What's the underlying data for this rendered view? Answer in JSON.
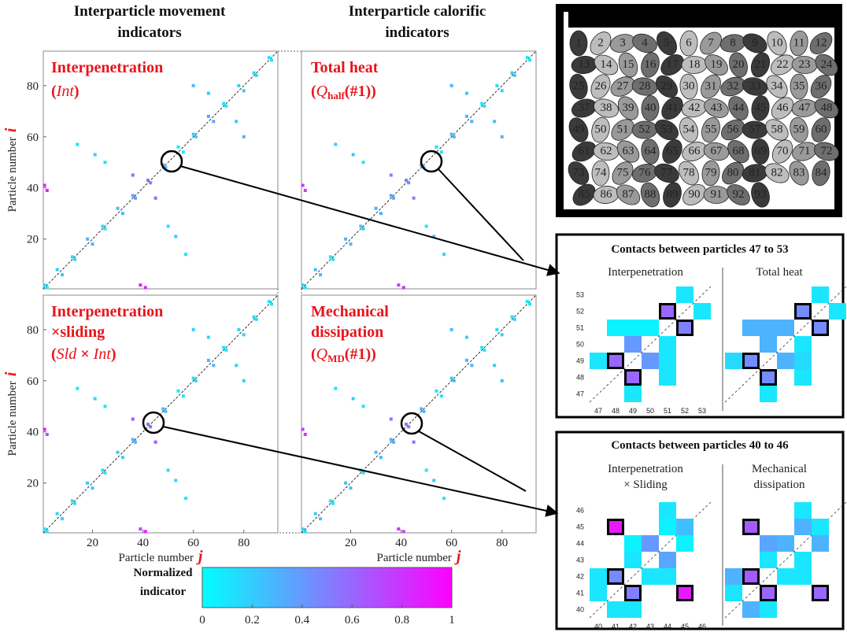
{
  "column_headers": [
    [
      "Interparticle movement",
      "indicators"
    ],
    [
      "Interparticle calorific",
      "indicators"
    ]
  ],
  "zoom_titles": [
    "Contacts between particles 47 to 53",
    "Contacts between particles 40 to 46"
  ],
  "particles": [
    1,
    2,
    3,
    4,
    5,
    6,
    7,
    8,
    9,
    10,
    11,
    12,
    13,
    14,
    15,
    16,
    17,
    18,
    19,
    20,
    21,
    22,
    23,
    24,
    25,
    26,
    27,
    28,
    29,
    30,
    31,
    32,
    33,
    34,
    35,
    36,
    37,
    38,
    39,
    40,
    41,
    42,
    43,
    44,
    45,
    46,
    47,
    48,
    49,
    50,
    51,
    52,
    53,
    54,
    55,
    56,
    57,
    58,
    59,
    60,
    61,
    62,
    63,
    64,
    65,
    66,
    67,
    68,
    69,
    70,
    71,
    72,
    73,
    74,
    75,
    76,
    77,
    78,
    79,
    80,
    81,
    82,
    83,
    84,
    85,
    86,
    87,
    88,
    89,
    90,
    91,
    92,
    93
  ],
  "chart_data": [
    {
      "type": "contact-map",
      "title": [
        [
          "Interpenetration"
        ],
        [
          "(",
          "Int",
          ")"
        ]
      ],
      "ylabel": [
        "Particle number",
        "i"
      ],
      "xlim": [
        0.5,
        93.5
      ],
      "ylim": [
        0.5,
        93.5
      ],
      "yticks": [
        20,
        40,
        60,
        80
      ],
      "x": [
        1,
        6,
        12,
        18,
        24,
        30,
        36,
        42,
        48,
        54,
        60,
        66,
        72,
        78,
        84,
        90,
        2,
        1,
        14,
        21,
        36,
        25,
        60,
        66,
        2,
        8,
        13,
        20,
        25,
        32,
        37,
        43,
        49,
        56,
        61,
        68,
        73,
        80,
        85,
        91,
        39,
        41,
        57,
        53,
        45,
        50,
        80,
        77
      ],
      "y": [
        2,
        8,
        13,
        20,
        25,
        32,
        37,
        43,
        49,
        56,
        61,
        68,
        73,
        80,
        85,
        91,
        39,
        41,
        57,
        53,
        45,
        50,
        80,
        77,
        1,
        6,
        12,
        18,
        24,
        30,
        36,
        42,
        48,
        54,
        60,
        66,
        72,
        78,
        84,
        90,
        2,
        1,
        14,
        21,
        36,
        25,
        60,
        66
      ],
      "values": [
        0.1,
        0.2,
        0.15,
        0.3,
        0.1,
        0.25,
        0.4,
        0.5,
        0.3,
        0.1,
        0.2,
        0.35,
        0.1,
        0.2,
        0.15,
        0.1,
        0.9,
        0.85,
        0.1,
        0.2,
        0.6,
        0.1,
        0.3,
        0.2,
        0.1,
        0.2,
        0.15,
        0.3,
        0.1,
        0.25,
        0.4,
        0.5,
        0.3,
        0.1,
        0.2,
        0.35,
        0.1,
        0.2,
        0.15,
        0.1,
        0.9,
        0.85,
        0.1,
        0.2,
        0.6,
        0.1,
        0.3,
        0.2
      ]
    },
    {
      "type": "contact-map",
      "title": [
        [
          "Total heat"
        ],
        [
          "(",
          "Q",
          "half",
          "(#1))"
        ]
      ],
      "xlim": [
        0.5,
        93.5
      ],
      "ylim": [
        0.5,
        93.5
      ],
      "x": [
        1,
        6,
        12,
        18,
        24,
        30,
        36,
        42,
        48,
        54,
        60,
        66,
        72,
        78,
        84,
        90,
        2,
        1,
        14,
        21,
        36,
        25,
        60,
        66,
        2,
        8,
        13,
        20,
        25,
        32,
        37,
        43,
        49,
        56,
        61,
        68,
        73,
        80,
        85,
        91,
        39,
        41,
        57,
        53,
        45,
        50,
        80,
        77
      ],
      "y": [
        2,
        8,
        13,
        20,
        25,
        32,
        37,
        43,
        49,
        56,
        61,
        68,
        73,
        80,
        85,
        91,
        39,
        41,
        57,
        53,
        45,
        50,
        80,
        77,
        1,
        6,
        12,
        18,
        24,
        30,
        36,
        42,
        48,
        54,
        60,
        66,
        72,
        78,
        84,
        90,
        2,
        1,
        14,
        21,
        36,
        25,
        60,
        66
      ],
      "values": [
        0.15,
        0.25,
        0.1,
        0.3,
        0.2,
        0.3,
        0.35,
        0.45,
        0.3,
        0.1,
        0.25,
        0.3,
        0.1,
        0.15,
        0.2,
        0.1,
        0.75,
        0.8,
        0.15,
        0.25,
        0.5,
        0.1,
        0.3,
        0.25,
        0.15,
        0.25,
        0.1,
        0.3,
        0.2,
        0.3,
        0.35,
        0.45,
        0.3,
        0.1,
        0.25,
        0.3,
        0.1,
        0.15,
        0.2,
        0.1,
        0.75,
        0.8,
        0.15,
        0.25,
        0.5,
        0.1,
        0.3,
        0.25
      ]
    },
    {
      "type": "contact-map",
      "title": [
        [
          "Interpenetration"
        ],
        [
          "×sliding"
        ],
        [
          "(",
          "Sld",
          " × ",
          "Int",
          ")"
        ]
      ],
      "xlabel": [
        "Particle number",
        "j"
      ],
      "ylabel": [
        "Particle number",
        "i"
      ],
      "xlim": [
        0.5,
        93.5
      ],
      "ylim": [
        0.5,
        93.5
      ],
      "xticks": [
        20,
        40,
        60,
        80
      ],
      "yticks": [
        20,
        40,
        60,
        80
      ],
      "x": [
        1,
        6,
        12,
        18,
        24,
        30,
        36,
        42,
        48,
        54,
        60,
        66,
        72,
        78,
        84,
        90,
        2,
        1,
        14,
        21,
        36,
        25,
        60,
        66,
        2,
        8,
        13,
        20,
        25,
        32,
        37,
        43,
        49,
        56,
        61,
        68,
        73,
        80,
        85,
        91,
        39,
        41,
        57,
        53,
        45,
        50,
        80,
        77
      ],
      "y": [
        2,
        8,
        13,
        20,
        25,
        32,
        37,
        43,
        49,
        56,
        61,
        68,
        73,
        80,
        85,
        91,
        39,
        41,
        57,
        53,
        45,
        50,
        80,
        77,
        1,
        6,
        12,
        18,
        24,
        30,
        36,
        42,
        48,
        54,
        60,
        66,
        72,
        78,
        84,
        90,
        2,
        1,
        14,
        21,
        36,
        25,
        60,
        66
      ],
      "values": [
        0.1,
        0.15,
        0.1,
        0.2,
        0.1,
        0.2,
        0.3,
        0.55,
        0.25,
        0.1,
        0.15,
        0.3,
        0.1,
        0.15,
        0.1,
        0.1,
        0.7,
        0.9,
        0.1,
        0.15,
        0.65,
        0.1,
        0.2,
        0.15,
        0.1,
        0.15,
        0.1,
        0.2,
        0.1,
        0.2,
        0.3,
        0.55,
        0.25,
        0.1,
        0.15,
        0.3,
        0.1,
        0.15,
        0.1,
        0.1,
        0.7,
        0.9,
        0.1,
        0.15,
        0.65,
        0.1,
        0.2,
        0.15
      ]
    },
    {
      "type": "contact-map",
      "title": [
        [
          "Mechanical"
        ],
        [
          "dissipation"
        ],
        [
          "(",
          "Q",
          "MD",
          "(#1))"
        ]
      ],
      "xlabel": [
        "Particle number",
        "j"
      ],
      "xlim": [
        0.5,
        93.5
      ],
      "ylim": [
        0.5,
        93.5
      ],
      "xticks": [
        20,
        40,
        60,
        80
      ],
      "x": [
        1,
        6,
        12,
        18,
        24,
        30,
        36,
        42,
        48,
        54,
        60,
        66,
        72,
        78,
        84,
        90,
        2,
        1,
        14,
        21,
        36,
        25,
        60,
        66,
        2,
        8,
        13,
        20,
        25,
        32,
        37,
        43,
        49,
        56,
        61,
        68,
        73,
        80,
        85,
        91,
        39,
        41,
        57,
        53,
        45,
        50,
        80,
        77
      ],
      "y": [
        2,
        8,
        13,
        20,
        25,
        32,
        37,
        43,
        49,
        56,
        61,
        68,
        73,
        80,
        85,
        91,
        39,
        41,
        57,
        53,
        45,
        50,
        80,
        77,
        1,
        6,
        12,
        18,
        24,
        30,
        36,
        42,
        48,
        54,
        60,
        66,
        72,
        78,
        84,
        90,
        2,
        1,
        14,
        21,
        36,
        25,
        60,
        66
      ],
      "values": [
        0.15,
        0.2,
        0.1,
        0.25,
        0.15,
        0.25,
        0.3,
        0.5,
        0.3,
        0.1,
        0.2,
        0.3,
        0.1,
        0.15,
        0.15,
        0.1,
        0.8,
        0.75,
        0.1,
        0.2,
        0.55,
        0.1,
        0.25,
        0.2,
        0.15,
        0.2,
        0.1,
        0.25,
        0.15,
        0.25,
        0.3,
        0.5,
        0.3,
        0.1,
        0.2,
        0.3,
        0.1,
        0.15,
        0.15,
        0.1,
        0.8,
        0.75,
        0.1,
        0.2,
        0.55,
        0.1,
        0.25,
        0.2
      ]
    },
    {
      "type": "contact-grid",
      "title": [
        "Interpenetration"
      ],
      "xlim": [
        46.5,
        53.5
      ],
      "ylim": [
        46.5,
        53.5
      ],
      "xticks": [
        47,
        48,
        49,
        50,
        51,
        52,
        53
      ],
      "yticks": [
        47,
        48,
        49,
        50,
        51,
        52,
        53
      ],
      "x": [
        52,
        51,
        53,
        48,
        49,
        50,
        52,
        49,
        51,
        47,
        48,
        50,
        51,
        49,
        51,
        49
      ],
      "y": [
        53,
        52,
        52,
        51,
        51,
        51,
        51,
        50,
        50,
        49,
        49,
        49,
        49,
        48,
        48,
        47
      ],
      "values": [
        0.1,
        0.6,
        0.1,
        0.05,
        0.05,
        0.05,
        0.5,
        0.4,
        0.1,
        0.1,
        0.6,
        0.4,
        0.1,
        0.6,
        0.1,
        0.1
      ],
      "highlighted": [
        false,
        true,
        false,
        false,
        false,
        false,
        true,
        false,
        false,
        false,
        true,
        false,
        false,
        true,
        false,
        false
      ]
    },
    {
      "type": "contact-grid",
      "title": [
        "Total heat"
      ],
      "xlim": [
        46.5,
        53.5
      ],
      "ylim": [
        46.5,
        53.5
      ],
      "x": [
        52,
        51,
        53,
        48,
        49,
        50,
        52,
        49,
        51,
        47,
        48,
        50,
        51,
        49,
        51,
        49
      ],
      "y": [
        53,
        52,
        52,
        51,
        51,
        51,
        51,
        50,
        50,
        49,
        49,
        49,
        49,
        48,
        48,
        47
      ],
      "values": [
        0.1,
        0.45,
        0.1,
        0.3,
        0.3,
        0.3,
        0.45,
        0.3,
        0.1,
        0.15,
        0.45,
        0.3,
        0.15,
        0.45,
        0.1,
        0.1
      ],
      "highlighted": [
        false,
        true,
        false,
        false,
        false,
        false,
        true,
        false,
        false,
        false,
        true,
        false,
        false,
        true,
        false,
        false
      ]
    },
    {
      "type": "contact-grid",
      "title": [
        "Interpenetration",
        "× Sliding"
      ],
      "xlim": [
        39.5,
        46.5
      ],
      "ylim": [
        39.5,
        46.5
      ],
      "xticks": [
        40,
        41,
        42,
        43,
        44,
        45,
        46
      ],
      "yticks": [
        40,
        41,
        42,
        43,
        44,
        45,
        46
      ],
      "x": [
        44,
        41,
        44,
        45,
        42,
        43,
        45,
        42,
        44,
        40,
        41,
        43,
        44,
        40,
        42,
        45,
        41,
        42
      ],
      "y": [
        46,
        45,
        45,
        45,
        44,
        44,
        44,
        43,
        43,
        42,
        42,
        42,
        42,
        41,
        41,
        41,
        40,
        40
      ],
      "values": [
        0.1,
        0.9,
        0.05,
        0.25,
        0.05,
        0.4,
        0.05,
        0.1,
        0.35,
        0.1,
        0.45,
        0.1,
        0.1,
        0.1,
        0.5,
        0.9,
        0.1,
        0.1
      ],
      "highlighted": [
        false,
        true,
        false,
        false,
        false,
        false,
        false,
        false,
        false,
        false,
        true,
        false,
        false,
        false,
        true,
        true,
        false,
        false
      ]
    },
    {
      "type": "contact-grid",
      "title": [
        "Mechanical",
        "dissipation"
      ],
      "xlim": [
        39.5,
        46.5
      ],
      "ylim": [
        39.5,
        46.5
      ],
      "x": [
        44,
        41,
        44,
        45,
        42,
        43,
        45,
        42,
        44,
        40,
        41,
        43,
        44,
        40,
        42,
        45,
        41,
        42
      ],
      "y": [
        46,
        45,
        45,
        45,
        44,
        44,
        44,
        43,
        43,
        42,
        42,
        42,
        42,
        41,
        41,
        41,
        40,
        40
      ],
      "values": [
        0.1,
        0.65,
        0.3,
        0.1,
        0.35,
        0.3,
        0.3,
        0.1,
        0.1,
        0.3,
        0.65,
        0.1,
        0.1,
        0.1,
        0.6,
        0.6,
        0.3,
        0.1
      ],
      "highlighted": [
        false,
        true,
        false,
        false,
        false,
        false,
        false,
        false,
        false,
        false,
        true,
        false,
        false,
        false,
        true,
        true,
        false,
        false
      ]
    },
    {
      "type": "colorbar",
      "title": [
        "Normalized",
        "indicator"
      ],
      "xlim": [
        0,
        1
      ],
      "xticks": [
        0,
        0.2,
        0.4,
        0.6,
        0.8,
        1
      ]
    }
  ]
}
